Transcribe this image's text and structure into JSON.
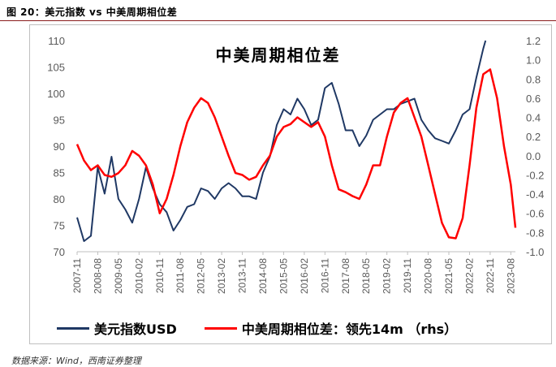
{
  "figure_label": "图 20：美元指数 vs 中美周期相位差",
  "source_note": "数据来源：Wind，西南证券整理",
  "colors": {
    "usd": "#1f3864",
    "phase": "#ff0000",
    "axis": "#595959",
    "grid": "#bfbfbf"
  },
  "chart_data": {
    "type": "line",
    "title": "中美周期相位差",
    "x_tick_labels": [
      "2007-11",
      "2008-08",
      "2009-05",
      "2010-02",
      "2010-11",
      "2011-08",
      "2012-05",
      "2013-02",
      "2013-11",
      "2014-08",
      "2015-05",
      "2016-02",
      "2016-11",
      "2017-08",
      "2018-05",
      "2019-02",
      "2019-11",
      "2020-08",
      "2021-05",
      "2022-02",
      "2022-11",
      "2023-08"
    ],
    "y_left": {
      "ylim": [
        70,
        110
      ],
      "ticks": [
        "70",
        "75",
        "80",
        "85",
        "90",
        "95",
        "100",
        "105",
        "110"
      ]
    },
    "y_right": {
      "ylim": [
        -1.0,
        1.2
      ],
      "ticks": [
        "-1.0",
        "-0.8",
        "-0.6",
        "-0.4",
        "-0.2",
        "0.0",
        "0.2",
        "0.4",
        "0.6",
        "0.8",
        "1.0",
        "1.2"
      ]
    },
    "legend_position": "bottom",
    "series": [
      {
        "name": "美元指数USD",
        "axis": "left",
        "x": [
          "2007-11",
          "2008-02",
          "2008-05",
          "2008-08",
          "2008-11",
          "2009-02",
          "2009-05",
          "2009-08",
          "2009-11",
          "2010-02",
          "2010-05",
          "2010-08",
          "2010-11",
          "2011-02",
          "2011-05",
          "2011-08",
          "2011-11",
          "2012-02",
          "2012-05",
          "2012-08",
          "2012-11",
          "2013-02",
          "2013-05",
          "2013-08",
          "2013-11",
          "2014-02",
          "2014-05",
          "2014-08",
          "2014-11",
          "2015-02",
          "2015-05",
          "2015-08",
          "2015-11",
          "2016-02",
          "2016-05",
          "2016-08",
          "2016-11",
          "2017-02",
          "2017-05",
          "2017-08",
          "2017-11",
          "2018-02",
          "2018-05",
          "2018-08",
          "2018-11",
          "2019-02",
          "2019-05",
          "2019-08",
          "2019-11",
          "2020-02",
          "2020-05",
          "2020-08",
          "2020-11",
          "2021-02",
          "2021-05",
          "2021-08",
          "2021-11",
          "2022-02",
          "2022-05",
          "2022-08",
          "2022-09"
        ],
        "values": [
          76.5,
          72,
          73,
          86,
          81,
          88,
          80,
          78,
          75.5,
          80,
          86,
          82,
          79,
          77.5,
          74,
          76,
          78.5,
          79,
          82,
          81.5,
          80,
          82,
          83,
          82,
          80.5,
          80.5,
          80,
          85,
          88,
          94,
          97,
          96,
          99,
          97,
          94,
          95,
          101,
          102,
          98,
          93,
          93,
          90,
          92,
          95,
          96,
          97,
          97,
          98,
          98.5,
          99,
          95,
          93,
          91.5,
          91,
          90.5,
          93,
          96,
          97,
          103,
          108.5,
          110
        ]
      },
      {
        "name": "中美周期相位差：领先14m （rhs）",
        "axis": "right",
        "x": [
          "2007-11",
          "2008-02",
          "2008-05",
          "2008-08",
          "2008-11",
          "2009-02",
          "2009-05",
          "2009-08",
          "2009-11",
          "2010-02",
          "2010-05",
          "2010-08",
          "2010-11",
          "2011-02",
          "2011-05",
          "2011-08",
          "2011-11",
          "2012-02",
          "2012-05",
          "2012-08",
          "2012-11",
          "2013-02",
          "2013-05",
          "2013-08",
          "2013-11",
          "2014-02",
          "2014-05",
          "2014-08",
          "2014-11",
          "2015-02",
          "2015-05",
          "2015-08",
          "2015-11",
          "2016-02",
          "2016-05",
          "2016-08",
          "2016-11",
          "2017-02",
          "2017-05",
          "2017-08",
          "2017-11",
          "2018-02",
          "2018-05",
          "2018-08",
          "2018-11",
          "2019-02",
          "2019-05",
          "2019-08",
          "2019-11",
          "2020-02",
          "2020-05",
          "2020-08",
          "2020-11",
          "2021-02",
          "2021-05",
          "2021-08",
          "2021-11",
          "2022-02",
          "2022-05",
          "2022-08",
          "2022-11",
          "2023-02",
          "2023-05",
          "2023-08",
          "2023-10"
        ],
        "values": [
          0.12,
          -0.05,
          -0.15,
          -0.1,
          -0.2,
          -0.22,
          -0.18,
          -0.1,
          0.05,
          0.0,
          -0.1,
          -0.3,
          -0.6,
          -0.45,
          -0.2,
          0.1,
          0.35,
          0.5,
          0.6,
          0.55,
          0.4,
          0.2,
          0.0,
          -0.18,
          -0.2,
          -0.25,
          -0.22,
          -0.1,
          0.0,
          0.2,
          0.3,
          0.33,
          0.4,
          0.35,
          0.3,
          0.35,
          0.2,
          -0.1,
          -0.35,
          -0.38,
          -0.42,
          -0.45,
          -0.3,
          -0.1,
          -0.1,
          0.2,
          0.45,
          0.55,
          0.6,
          0.4,
          0.2,
          -0.1,
          -0.4,
          -0.7,
          -0.85,
          -0.86,
          -0.65,
          -0.1,
          0.5,
          0.85,
          0.9,
          0.6,
          0.1,
          -0.3,
          -0.75
        ]
      }
    ]
  }
}
